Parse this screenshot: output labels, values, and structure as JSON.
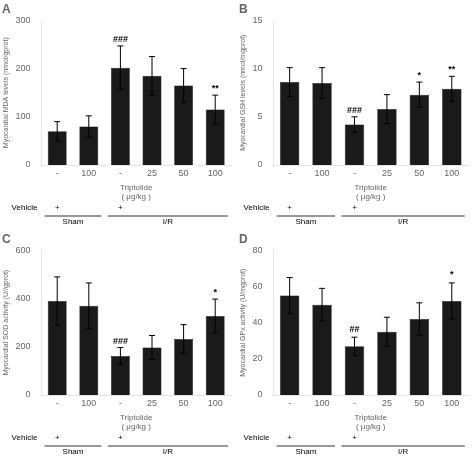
{
  "chart_data": [
    {
      "type": "bar",
      "title": "A",
      "ylabel": "Myocardial MDA levels (nmol/gprot)",
      "x_label": "Triptolide\n( μg/kg )",
      "categories": [
        "-",
        "100",
        "-",
        "25",
        "50",
        "100"
      ],
      "values": [
        70,
        80,
        202,
        185,
        165,
        115
      ],
      "errors": [
        20,
        22,
        45,
        40,
        35,
        30
      ],
      "significance": [
        null,
        null,
        "###",
        null,
        null,
        "**"
      ],
      "significance_y": [
        null,
        null,
        250,
        null,
        null,
        150
      ],
      "vehicle_label": "Vehicle",
      "vehicle": [
        "+",
        null,
        "+",
        null,
        null,
        null
      ],
      "group": [
        "Sham",
        "Sham",
        "I/R",
        "I/R",
        "I/R",
        "I/R"
      ],
      "color": "#1a1a1a",
      "ylim": [
        0,
        300
      ],
      "yticks": [
        0,
        100,
        200,
        300
      ],
      "grid": false
    },
    {
      "type": "bar",
      "title": "B",
      "ylabel": "Myocardial GSH levels (nmol/mgprot)",
      "x_label": "Triptolide\n( μg/kg )",
      "categories": [
        "-",
        "100",
        "-",
        "25",
        "50",
        "100"
      ],
      "values": [
        8.6,
        8.5,
        4.2,
        5.8,
        7.3,
        7.9
      ],
      "errors": [
        1.5,
        1.6,
        0.8,
        1.5,
        1.3,
        1.3
      ],
      "significance": [
        null,
        null,
        "###",
        null,
        "*",
        "**"
      ],
      "significance_y": [
        null,
        null,
        5.2,
        null,
        8.8,
        9.4
      ],
      "vehicle_label": "Vehicle",
      "vehicle": [
        "+",
        null,
        "+",
        null,
        null,
        null
      ],
      "group": [
        "Sham",
        "Sham",
        "I/R",
        "I/R",
        "I/R",
        "I/R"
      ],
      "color": "#1a1a1a",
      "ylim": [
        0,
        15
      ],
      "yticks": [
        0,
        5,
        10,
        15
      ],
      "grid": false
    },
    {
      "type": "bar",
      "title": "C",
      "ylabel": "Myocardial SOD activity (U//gprot)",
      "x_label": "Triptolide\n( μg/kg )",
      "categories": [
        "-",
        "100",
        "-",
        "25",
        "50",
        "100"
      ],
      "values": [
        390,
        370,
        162,
        197,
        232,
        328
      ],
      "errors": [
        100,
        95,
        35,
        50,
        60,
        70
      ],
      "significance": [
        null,
        null,
        "###",
        null,
        null,
        "*"
      ],
      "significance_y": [
        null,
        null,
        205,
        null,
        null,
        405
      ],
      "vehicle_label": "Vehicle",
      "vehicle": [
        "+",
        null,
        "+",
        null,
        null,
        null
      ],
      "group": [
        "Sham",
        "Sham",
        "I/R",
        "I/R",
        "I/R",
        "I/R"
      ],
      "color": "#1a1a1a",
      "ylim": [
        0,
        600
      ],
      "yticks": [
        0,
        200,
        400,
        600
      ],
      "grid": false
    },
    {
      "type": "bar",
      "title": "D",
      "ylabel": "Myocardial GPx activity (U/mgprot)",
      "x_label": "Triptolide\n( μg/kg )",
      "categories": [
        "-",
        "100",
        "-",
        "25",
        "50",
        "100"
      ],
      "values": [
        55,
        50,
        27,
        35,
        42,
        52
      ],
      "errors": [
        10,
        9,
        5,
        8,
        9,
        10
      ],
      "significance": [
        null,
        null,
        "##",
        null,
        null,
        "*"
      ],
      "significance_y": [
        null,
        null,
        34,
        null,
        null,
        64
      ],
      "vehicle_label": "Vehicle",
      "vehicle": [
        "+",
        null,
        "+",
        null,
        null,
        null
      ],
      "group": [
        "Sham",
        "Sham",
        "I/R",
        "I/R",
        "I/R",
        "I/R"
      ],
      "color": "#1a1a1a",
      "ylim": [
        0,
        80
      ],
      "yticks": [
        0,
        20,
        40,
        60,
        80
      ],
      "grid": false
    }
  ]
}
